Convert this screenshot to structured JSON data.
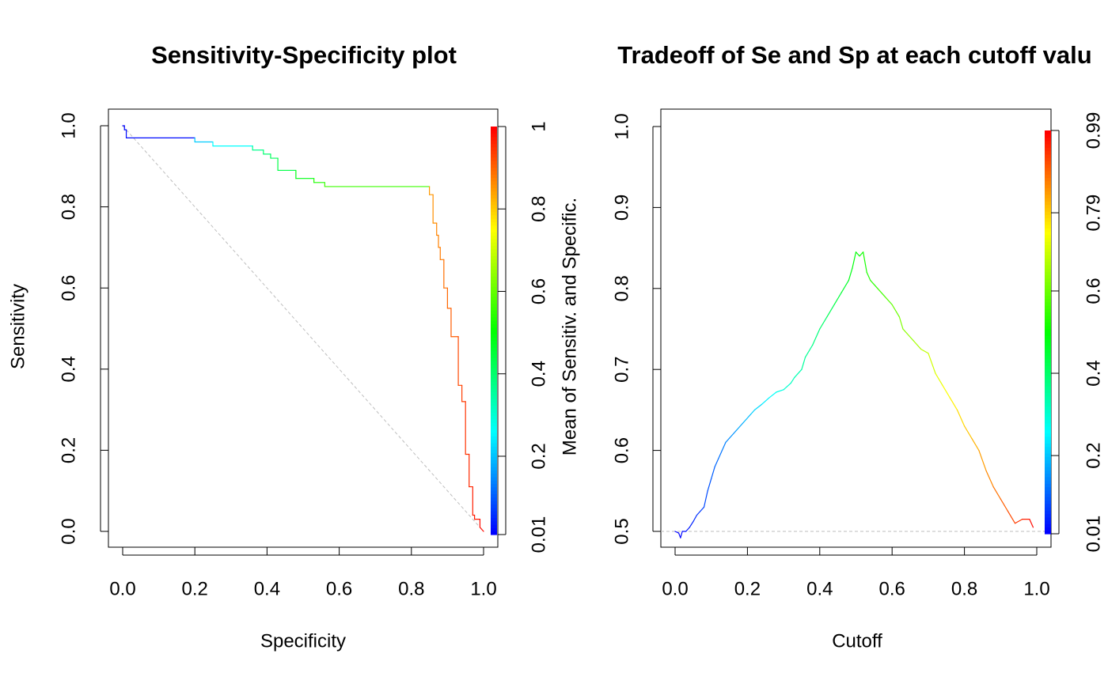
{
  "chart_data": [
    {
      "type": "line",
      "title": "Sensitivity-Specificity plot",
      "xlabel": "Specificity",
      "ylabel": "Sensitivity",
      "xlim": [
        0,
        1
      ],
      "ylim": [
        0,
        1
      ],
      "xticks": [
        "0.0",
        "0.2",
        "0.4",
        "0.6",
        "0.8",
        "1.0"
      ],
      "yticks": [
        "0.0",
        "0.2",
        "0.4",
        "0.6",
        "0.8",
        "1.0"
      ],
      "reference_line": "diagonal from (0,1) to (1,0), dashed grey",
      "colorbar": {
        "label": "Mean of Sensitiv. and Specific.",
        "ticks": [
          "0.01",
          "0.2",
          "0.4",
          "0.6",
          "0.8",
          "1"
        ],
        "tick_values": [
          0.01,
          0.2,
          0.4,
          0.6,
          0.8,
          1
        ],
        "range": [
          0.01,
          1
        ],
        "palette": "rainbow blue→cyan→green→yellow→red"
      },
      "series": [
        {
          "x": [
            0,
            0.005,
            0.005,
            0.01,
            0.01,
            0.2,
            0.2,
            0.25,
            0.25,
            0.36,
            0.36,
            0.39,
            0.39,
            0.41,
            0.41,
            0.43,
            0.43,
            0.48,
            0.48,
            0.53,
            0.53,
            0.56,
            0.56,
            0.85,
            0.85,
            0.86,
            0.86,
            0.87,
            0.87,
            0.875,
            0.875,
            0.88,
            0.88,
            0.89,
            0.89,
            0.9,
            0.9,
            0.91,
            0.91,
            0.93,
            0.93,
            0.94,
            0.94,
            0.95,
            0.95,
            0.96,
            0.96,
            0.97,
            0.97,
            0.975,
            0.975,
            0.99,
            0.99,
            1.0
          ],
          "y": [
            1.0,
            1.0,
            0.99,
            0.99,
            0.97,
            0.97,
            0.96,
            0.96,
            0.95,
            0.95,
            0.94,
            0.94,
            0.93,
            0.93,
            0.92,
            0.92,
            0.89,
            0.89,
            0.87,
            0.87,
            0.86,
            0.86,
            0.85,
            0.85,
            0.83,
            0.83,
            0.76,
            0.76,
            0.73,
            0.73,
            0.7,
            0.7,
            0.67,
            0.67,
            0.6,
            0.6,
            0.55,
            0.55,
            0.48,
            0.48,
            0.36,
            0.36,
            0.32,
            0.32,
            0.19,
            0.19,
            0.11,
            0.11,
            0.04,
            0.04,
            0.03,
            0.03,
            0.01,
            0.0
          ]
        }
      ]
    },
    {
      "type": "line",
      "title": "Tradeoff of Se and Sp at each cutoff valu",
      "xlabel": "Cutoff",
      "ylabel": "",
      "xlim": [
        0,
        1
      ],
      "ylim": [
        0.5,
        1
      ],
      "xticks": [
        "0.0",
        "0.2",
        "0.4",
        "0.6",
        "0.8",
        "1.0"
      ],
      "yticks": [
        "0.5",
        "0.6",
        "0.7",
        "0.8",
        "0.9",
        "1.0"
      ],
      "reference_line": "horizontal at y=0.5, dashed grey",
      "colorbar": {
        "ticks": [
          "0.01",
          "0.2",
          "0.4",
          "0.6",
          "0.79",
          "0.99"
        ],
        "tick_values": [
          0.01,
          0.2,
          0.4,
          0.6,
          0.79,
          0.99
        ],
        "range": [
          0.01,
          0.99
        ],
        "palette": "rainbow blue→cyan→green→yellow→red"
      },
      "series": [
        {
          "x": [
            0.0,
            0.01,
            0.015,
            0.02,
            0.03,
            0.04,
            0.05,
            0.06,
            0.07,
            0.08,
            0.09,
            0.1,
            0.11,
            0.12,
            0.13,
            0.14,
            0.15,
            0.17,
            0.19,
            0.21,
            0.22,
            0.24,
            0.26,
            0.28,
            0.3,
            0.32,
            0.33,
            0.35,
            0.36,
            0.38,
            0.4,
            0.42,
            0.44,
            0.46,
            0.48,
            0.49,
            0.5,
            0.51,
            0.52,
            0.53,
            0.54,
            0.56,
            0.58,
            0.6,
            0.62,
            0.63,
            0.64,
            0.66,
            0.68,
            0.7,
            0.72,
            0.74,
            0.76,
            0.78,
            0.8,
            0.82,
            0.84,
            0.86,
            0.88,
            0.9,
            0.92,
            0.94,
            0.96,
            0.98,
            0.99
          ],
          "y": [
            0.5,
            0.498,
            0.492,
            0.5,
            0.5,
            0.505,
            0.512,
            0.52,
            0.525,
            0.53,
            0.55,
            0.565,
            0.58,
            0.59,
            0.6,
            0.61,
            0.615,
            0.625,
            0.635,
            0.645,
            0.65,
            0.657,
            0.665,
            0.672,
            0.675,
            0.683,
            0.69,
            0.7,
            0.715,
            0.73,
            0.75,
            0.765,
            0.78,
            0.795,
            0.81,
            0.825,
            0.845,
            0.84,
            0.845,
            0.82,
            0.81,
            0.8,
            0.79,
            0.78,
            0.765,
            0.75,
            0.745,
            0.735,
            0.725,
            0.72,
            0.695,
            0.68,
            0.665,
            0.65,
            0.63,
            0.615,
            0.6,
            0.575,
            0.555,
            0.54,
            0.525,
            0.51,
            0.515,
            0.515,
            0.505
          ]
        }
      ]
    }
  ]
}
